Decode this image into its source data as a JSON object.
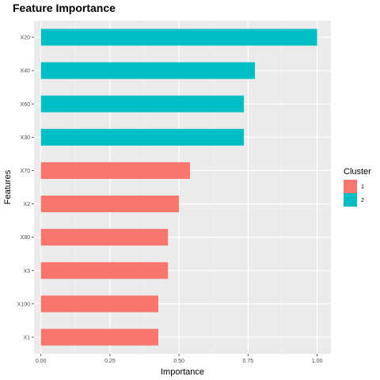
{
  "chart_data": {
    "type": "bar",
    "orientation": "horizontal",
    "title": "Feature Importance",
    "xlabel": "Importance",
    "ylabel": "Features",
    "xlim": [
      -0.025,
      1.05
    ],
    "xticks": [
      0.0,
      0.25,
      0.5,
      0.75,
      1.0
    ],
    "xtick_labels": [
      "0.00",
      "0.25",
      "0.50",
      "0.75",
      "1.00"
    ],
    "grid": true,
    "legend": {
      "title": "Cluster",
      "placement": "right",
      "entries": [
        {
          "label": "1",
          "color": "#F8766D"
        },
        {
          "label": "2",
          "color": "#00BFC4"
        }
      ]
    },
    "categories": [
      "X20",
      "X40",
      "X60",
      "X30",
      "X70",
      "X2",
      "X80",
      "X3",
      "X100",
      "X1"
    ],
    "values": [
      1.0,
      0.775,
      0.735,
      0.735,
      0.54,
      0.5,
      0.46,
      0.46,
      0.425,
      0.425
    ],
    "clusters": [
      "2",
      "2",
      "2",
      "2",
      "1",
      "1",
      "1",
      "1",
      "1",
      "1"
    ]
  }
}
